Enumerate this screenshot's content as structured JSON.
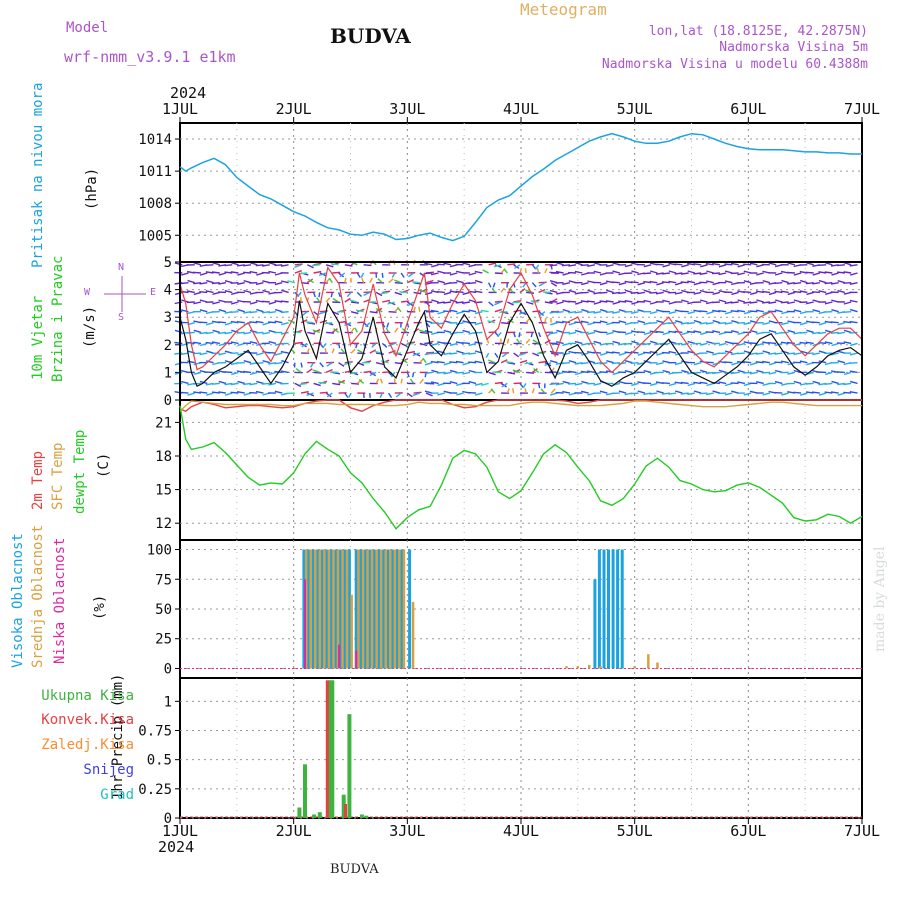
{
  "header": {
    "model_label": "Model",
    "model_name": "wrf-nmm_v3.9.1 e1km",
    "title": "BUDVA",
    "meteogram": "Meteogram",
    "lonlat": "lon,lat (18.8125E, 42.2875N)",
    "elevation": "Nadmorska Visina 5m",
    "model_elevation": "Nadmorska Visina u modelu 60.4388m",
    "year": "2024",
    "footer_station": "BUDVA",
    "watermark": "made by Angel"
  },
  "colors": {
    "pressure": "#1aa3e0",
    "temp2m": "#e84040",
    "sfc": "#d9a040",
    "dewpt": "#22cc22",
    "high_cloud": "#1aa3e0",
    "mid_cloud": "#d9a040",
    "low_cloud": "#dd2aa0",
    "total_precip": "#3fb33f",
    "convective": "#e84040",
    "freezing": "#ff8c30",
    "snow": "#4040e0",
    "hail": "#20c0c0",
    "header_purple": "#aa55cc",
    "header_orange": "#e0b060"
  },
  "chart_data": [
    {
      "type": "line",
      "panel": "pressure",
      "ylabel_name": "Pritisak na nivou mora",
      "ylabel_unit": "(hPa)",
      "x_ticks": [
        "1JUL",
        "2JUL",
        "3JUL",
        "4JUL",
        "5JUL",
        "6JUL",
        "7JUL"
      ],
      "yticks": [
        1005,
        1008,
        1011,
        1014
      ],
      "ylim": [
        1002.5,
        1015.5
      ],
      "grid": true,
      "x_days": [
        0,
        0.05,
        0.1,
        0.2,
        0.3,
        0.4,
        0.5,
        0.6,
        0.7,
        0.8,
        0.9,
        1.0,
        1.1,
        1.2,
        1.3,
        1.4,
        1.5,
        1.6,
        1.7,
        1.8,
        1.9,
        2.0,
        2.1,
        2.2,
        2.3,
        2.4,
        2.5,
        2.6,
        2.7,
        2.8,
        2.9,
        3.0,
        3.1,
        3.2,
        3.3,
        3.4,
        3.5,
        3.6,
        3.7,
        3.8,
        3.9,
        4.0,
        4.1,
        4.2,
        4.3,
        4.4,
        4.5,
        4.6,
        4.7,
        4.8,
        4.9,
        5.0,
        5.1,
        5.2,
        5.3,
        5.4,
        5.5,
        5.6,
        5.7,
        5.8,
        5.9,
        6.0
      ],
      "values": [
        1011.4,
        1011.0,
        1011.3,
        1011.8,
        1012.2,
        1011.6,
        1010.4,
        1009.6,
        1008.8,
        1008.4,
        1007.8,
        1007.2,
        1006.8,
        1006.2,
        1005.7,
        1005.5,
        1005.1,
        1005.0,
        1005.3,
        1005.1,
        1004.6,
        1004.7,
        1005.0,
        1005.2,
        1004.8,
        1004.5,
        1004.9,
        1006.2,
        1007.6,
        1008.3,
        1008.7,
        1009.6,
        1010.5,
        1011.2,
        1012.0,
        1012.6,
        1013.2,
        1013.8,
        1014.2,
        1014.5,
        1014.2,
        1013.8,
        1013.6,
        1013.6,
        1013.8,
        1014.2,
        1014.5,
        1014.4,
        1014.0,
        1013.6,
        1013.3,
        1013.1,
        1013.0,
        1013.0,
        1013.0,
        1012.9,
        1012.8,
        1012.8,
        1012.7,
        1012.7,
        1012.6,
        1012.6
      ]
    },
    {
      "type": "line",
      "panel": "wind",
      "ylabel_name1": "10m Vjetar",
      "ylabel_name2": "Brzina i Pravac",
      "ylabel_unit": "(m/s)",
      "compass_w": "W",
      "compass_e": "E",
      "compass_n": "N",
      "compass_s": "S",
      "yticks": [
        0,
        1,
        2,
        3,
        4,
        5
      ],
      "ylim": [
        0,
        5
      ],
      "grid": true,
      "x_days": [
        0,
        0.05,
        0.1,
        0.15,
        0.2,
        0.3,
        0.4,
        0.5,
        0.6,
        0.7,
        0.8,
        0.9,
        1.0,
        1.05,
        1.1,
        1.2,
        1.3,
        1.4,
        1.5,
        1.6,
        1.7,
        1.8,
        1.9,
        2.0,
        2.1,
        2.15,
        2.2,
        2.3,
        2.4,
        2.5,
        2.6,
        2.7,
        2.8,
        2.9,
        3.0,
        3.1,
        3.2,
        3.3,
        3.4,
        3.5,
        3.6,
        3.7,
        3.8,
        3.9,
        4.0,
        4.1,
        4.2,
        4.3,
        4.4,
        4.5,
        4.6,
        4.7,
        4.8,
        4.9,
        5.0,
        5.1,
        5.2,
        5.3,
        5.4,
        5.5,
        5.6,
        5.7,
        5.8,
        5.9,
        6.0
      ],
      "speed_mean": [
        3.0,
        2.2,
        1.0,
        0.5,
        0.6,
        1.0,
        1.2,
        1.5,
        1.8,
        1.2,
        0.6,
        1.2,
        2.0,
        3.6,
        2.5,
        1.5,
        3.5,
        2.8,
        1.0,
        1.5,
        3.0,
        1.2,
        0.8,
        1.8,
        2.8,
        3.2,
        2.0,
        1.6,
        2.4,
        3.1,
        2.5,
        1.0,
        1.4,
        2.8,
        3.5,
        2.8,
        1.6,
        0.8,
        1.8,
        2.0,
        1.4,
        0.7,
        0.5,
        0.8,
        1.0,
        1.4,
        1.8,
        2.2,
        1.6,
        1.0,
        0.8,
        0.6,
        0.9,
        1.2,
        1.6,
        2.2,
        2.4,
        1.8,
        1.2,
        0.9,
        1.2,
        1.6,
        1.8,
        1.9,
        1.6
      ],
      "speed_max": [
        4.2,
        3.5,
        2.0,
        1.1,
        1.2,
        1.6,
        2.0,
        2.5,
        2.8,
        2.0,
        1.4,
        2.2,
        3.0,
        4.6,
        3.8,
        2.8,
        4.8,
        4.2,
        2.0,
        2.5,
        4.2,
        2.4,
        1.6,
        2.8,
        4.0,
        4.6,
        3.0,
        2.6,
        3.5,
        4.2,
        3.6,
        2.2,
        2.6,
        4.0,
        4.6,
        3.8,
        2.6,
        1.6,
        2.8,
        3.0,
        2.2,
        1.4,
        1.0,
        1.4,
        1.8,
        2.2,
        2.6,
        3.0,
        2.4,
        1.8,
        1.4,
        1.2,
        1.6,
        2.0,
        2.4,
        3.0,
        3.2,
        2.6,
        2.0,
        1.6,
        2.0,
        2.4,
        2.6,
        2.6,
        2.2
      ]
    },
    {
      "type": "line",
      "panel": "temperature",
      "ylabel_t2m": "2m Temp",
      "ylabel_sfc": "SFC Temp",
      "ylabel_dew": "dewpt Temp",
      "ylabel_unit": "(C)",
      "yticks": [
        12,
        15,
        18,
        21
      ],
      "ylim": [
        10.5,
        23.0
      ],
      "grid": true,
      "x_days": [
        0,
        0.05,
        0.1,
        0.2,
        0.3,
        0.4,
        0.5,
        0.6,
        0.7,
        0.8,
        0.9,
        1.0,
        1.1,
        1.2,
        1.3,
        1.4,
        1.5,
        1.6,
        1.7,
        1.8,
        1.9,
        2.0,
        2.1,
        2.2,
        2.3,
        2.4,
        2.5,
        2.6,
        2.7,
        2.8,
        2.9,
        3.0,
        3.1,
        3.2,
        3.3,
        3.4,
        3.5,
        3.6,
        3.7,
        3.8,
        3.9,
        4.0,
        4.1,
        4.2,
        4.3,
        4.4,
        4.5,
        4.6,
        4.7,
        4.8,
        4.9,
        5.0,
        5.1,
        5.2,
        5.3,
        5.4,
        5.5,
        5.6,
        5.7,
        5.8,
        5.9,
        6.0
      ],
      "series": [
        {
          "name": "2m Temp",
          "values": [
            22.2,
            22.0,
            22.4,
            22.8,
            22.6,
            22.3,
            22.4,
            22.5,
            22.5,
            22.4,
            22.3,
            22.4,
            22.7,
            22.9,
            23.0,
            23.0,
            22.3,
            22.0,
            22.5,
            22.8,
            23.0,
            23.0,
            23.0,
            23.0,
            23.0,
            22.6,
            22.3,
            22.4,
            22.8,
            23.0,
            23.0,
            23.0,
            23.0,
            23.0,
            23.0,
            22.9,
            22.7,
            22.8,
            23.0,
            23.0,
            23.0,
            23.0,
            23.0,
            23.0,
            23.0,
            23.0,
            23.0,
            23.0,
            23.0,
            23.0,
            23.0,
            23.0,
            23.0,
            23.0,
            23.0,
            23.0,
            23.0,
            23.0,
            23.0,
            23.0,
            23.0,
            23.0
          ]
        },
        {
          "name": "SFC Temp",
          "values": [
            22.0,
            22.5,
            22.9,
            22.8,
            22.7,
            22.6,
            22.6,
            22.6,
            22.6,
            22.6,
            22.5,
            22.5,
            22.7,
            22.7,
            22.7,
            22.6,
            22.6,
            22.6,
            22.6,
            22.5,
            22.5,
            22.6,
            22.8,
            22.7,
            22.7,
            22.6,
            22.6,
            22.5,
            22.5,
            22.5,
            22.5,
            22.7,
            22.8,
            22.8,
            22.7,
            22.6,
            22.5,
            22.5,
            22.5,
            22.6,
            22.7,
            22.9,
            22.9,
            22.8,
            22.7,
            22.6,
            22.5,
            22.4,
            22.4,
            22.4,
            22.5,
            22.6,
            22.7,
            22.8,
            22.8,
            22.7,
            22.6,
            22.5,
            22.5,
            22.5,
            22.5,
            22.5
          ]
        },
        {
          "name": "dewpt Temp",
          "values": [
            22.5,
            19.5,
            18.6,
            18.8,
            19.2,
            18.3,
            17.2,
            16.1,
            15.4,
            15.6,
            15.5,
            16.5,
            18.2,
            19.3,
            18.6,
            18.0,
            16.5,
            15.6,
            14.2,
            13.0,
            11.5,
            12.5,
            13.2,
            13.5,
            15.4,
            17.8,
            18.5,
            18.2,
            17.0,
            14.8,
            14.2,
            14.9,
            16.5,
            18.2,
            19.0,
            18.3,
            17.0,
            15.8,
            14.0,
            13.6,
            14.2,
            15.5,
            17.1,
            17.8,
            17.0,
            15.8,
            15.5,
            15.0,
            14.8,
            14.9,
            15.4,
            15.6,
            15.2,
            14.5,
            13.8,
            12.5,
            12.2,
            12.3,
            12.8,
            12.6,
            12.0,
            12.6
          ]
        }
      ]
    },
    {
      "type": "bar",
      "panel": "clouds",
      "ylabel_high": "Visoka Oblacnost",
      "ylabel_mid": "Srednja Oblacnost",
      "ylabel_low": "Niska Oblacnost",
      "ylabel_unit": "(%)",
      "yticks": [
        0,
        25,
        50,
        75,
        100
      ],
      "ylim": [
        -8,
        108
      ],
      "grid": true,
      "high_x": [
        1.09,
        1.13,
        1.17,
        1.21,
        1.25,
        1.29,
        1.33,
        1.37,
        1.41,
        1.45,
        1.49,
        1.55,
        1.59,
        1.63,
        1.67,
        1.71,
        1.75,
        1.79,
        1.83,
        1.87,
        1.91,
        1.95,
        2.02,
        3.65,
        3.69,
        3.73,
        3.77,
        3.81,
        3.85,
        3.89
      ],
      "high_values": [
        100,
        100,
        100,
        100,
        100,
        100,
        100,
        100,
        100,
        100,
        100,
        100,
        100,
        100,
        100,
        100,
        100,
        100,
        100,
        100,
        100,
        100,
        100,
        75,
        100,
        100,
        100,
        100,
        100,
        100
      ],
      "mid_x": [
        1.11,
        1.15,
        1.19,
        1.23,
        1.27,
        1.31,
        1.35,
        1.39,
        1.43,
        1.47,
        1.51,
        1.57,
        1.61,
        1.65,
        1.69,
        1.73,
        1.77,
        1.81,
        1.85,
        1.89,
        1.93,
        1.97,
        2.05,
        3.4,
        3.5,
        3.6,
        3.7,
        4.0,
        4.12,
        4.2
      ],
      "mid_values": [
        100,
        100,
        100,
        100,
        100,
        100,
        100,
        100,
        100,
        100,
        62,
        100,
        100,
        100,
        100,
        100,
        100,
        100,
        100,
        100,
        100,
        100,
        56,
        2,
        2,
        3,
        2,
        2,
        12,
        5
      ],
      "low_x": [
        1.1,
        1.4,
        1.55
      ],
      "low_values": [
        75,
        20,
        15
      ]
    },
    {
      "type": "bar",
      "panel": "precipitation",
      "legend": [
        "Ukupna Kisa",
        "Konvek.Kisa",
        "Zaledj.Kisa",
        "Snijeg",
        "Grad"
      ],
      "ylabel_unit": "1hr Precip (mm)",
      "yticks": [
        0,
        0.25,
        0.5,
        0.75,
        1
      ],
      "ytick_labels": [
        "0",
        "0.25",
        "0.5",
        "0.75",
        "1"
      ],
      "ylim": [
        0,
        1.2
      ],
      "grid": true,
      "total_x": [
        1.05,
        1.1,
        1.18,
        1.23,
        1.32,
        1.34,
        1.44,
        1.49,
        1.6,
        1.64
      ],
      "total_values": [
        0.09,
        0.46,
        0.03,
        0.05,
        1.18,
        1.18,
        0.2,
        0.89,
        0.03,
        0.02
      ],
      "conv_x": [
        1.3,
        1.46
      ],
      "conv_values": [
        1.18,
        0.12
      ]
    }
  ]
}
